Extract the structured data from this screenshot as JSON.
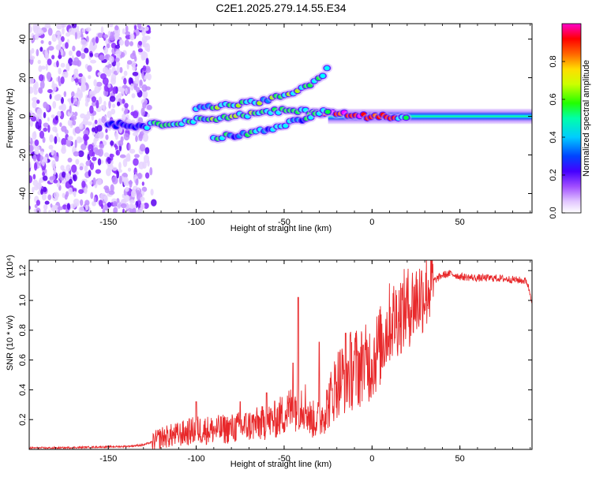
{
  "title": "C2E1.2025.279.14.55.E34",
  "colors": {
    "snr_line": "#e8282a",
    "spectral_palette": [
      "#ffffff",
      "#e2c7ff",
      "#a04dff",
      "#6600ff",
      "#0000ff",
      "#0088ff",
      "#00ffff",
      "#00ff44",
      "#aaff00",
      "#ffee00",
      "#ff6600",
      "#ff0000",
      "#ff00ff"
    ]
  },
  "chart_data": [
    {
      "type": "heatmap",
      "name": "spectrogram",
      "xlabel": "Height of straight line (km)",
      "ylabel": "Frequency (Hz)",
      "xlim": [
        -195,
        91
      ],
      "ylim": [
        -50,
        48
      ],
      "xticks": [
        -150,
        -100,
        -50,
        0,
        50
      ],
      "xtick_labels": [
        "-150",
        "-100",
        "-50",
        "0",
        "50"
      ],
      "yticks": [
        -40,
        -20,
        0,
        20,
        40
      ],
      "ytick_labels": [
        "-40",
        "-20",
        "0",
        "20",
        "40"
      ],
      "colorbar": {
        "label": "Normalized spectral amplitude",
        "range": [
          0,
          1
        ],
        "ticks": [
          0.0,
          0.2,
          0.4,
          0.6,
          0.8
        ],
        "tick_labels": [
          "0.0",
          "0.2",
          "0.4",
          "0.6",
          "0.8"
        ]
      },
      "features": [
        {
          "name": "noise-region",
          "x_range": [
            -195,
            -127
          ],
          "amplitude": 0.15
        },
        {
          "name": "main-branch",
          "points": [
            [
              -150,
              -4
            ],
            [
              -130,
              -5
            ],
            [
              -110,
              -3
            ],
            [
              -90,
              -1
            ],
            [
              -70,
              1
            ],
            [
              -50,
              3
            ],
            [
              -30,
              2
            ],
            [
              -20,
              2
            ],
            [
              -10,
              0
            ],
            [
              0,
              0
            ],
            [
              10,
              0
            ],
            [
              30,
              0
            ],
            [
              91,
              0
            ]
          ]
        },
        {
          "name": "upper-branch",
          "points": [
            [
              -100,
              4
            ],
            [
              -80,
              6
            ],
            [
              -60,
              8
            ],
            [
              -50,
              11
            ],
            [
              -40,
              14
            ],
            [
              -30,
              19
            ],
            [
              -25,
              25
            ]
          ]
        },
        {
          "name": "lower-branch",
          "points": [
            [
              -90,
              -11
            ],
            [
              -70,
              -9
            ],
            [
              -55,
              -6
            ],
            [
              -45,
              -3
            ],
            [
              -35,
              0
            ],
            [
              -25,
              3
            ]
          ]
        },
        {
          "name": "flat-band",
          "x_range": [
            20,
            91
          ],
          "frequency": 0,
          "amplitude": 0.45
        }
      ]
    },
    {
      "type": "line",
      "name": "snr",
      "xlabel": "Height of straight line (km)",
      "ylabel": "SNR (10 * v/v)",
      "scale_label": "(x10⁴)",
      "xlim": [
        -195,
        91
      ],
      "ylim": [
        0,
        1.27
      ],
      "xticks": [
        -150,
        -100,
        -50,
        0,
        50
      ],
      "xtick_labels": [
        "-150",
        "-100",
        "-50",
        "0",
        "50"
      ],
      "yticks": [
        0.2,
        0.4,
        0.6,
        0.8,
        1.0,
        1.2
      ],
      "ytick_labels": [
        "0.2",
        "0.4",
        "0.6",
        "0.8",
        "1.0",
        "1.2"
      ],
      "series": [
        {
          "name": "SNR",
          "x": [
            -195,
            -180,
            -160,
            -140,
            -130,
            -125,
            -120,
            -110,
            -100,
            -90,
            -80,
            -70,
            -60,
            -55,
            -50,
            -45,
            -42,
            -40,
            -38,
            -35,
            -30,
            -25,
            -20,
            -15,
            -10,
            -5,
            0,
            5,
            10,
            15,
            20,
            25,
            30,
            35,
            40,
            45,
            50,
            60,
            70,
            80,
            88,
            91
          ],
          "values": [
            0.01,
            0.01,
            0.015,
            0.02,
            0.03,
            0.05,
            0.08,
            0.1,
            0.13,
            0.13,
            0.14,
            0.16,
            0.18,
            0.2,
            0.24,
            0.28,
            0.3,
            0.32,
            0.3,
            0.2,
            0.2,
            0.3,
            0.45,
            0.5,
            0.55,
            0.55,
            0.6,
            0.7,
            0.85,
            0.9,
            0.95,
            1.0,
            1.06,
            1.13,
            1.17,
            1.18,
            1.16,
            1.15,
            1.15,
            1.14,
            1.13,
            1.0
          ],
          "spikes": [
            [
              -42,
              1.02
            ],
            [
              -45,
              0.58
            ],
            [
              -30,
              0.72
            ],
            [
              -15,
              0.78
            ],
            [
              -5,
              0.7
            ],
            [
              -75,
              0.32
            ],
            [
              -100,
              0.32
            ],
            [
              -60,
              0.38
            ]
          ]
        }
      ]
    }
  ]
}
